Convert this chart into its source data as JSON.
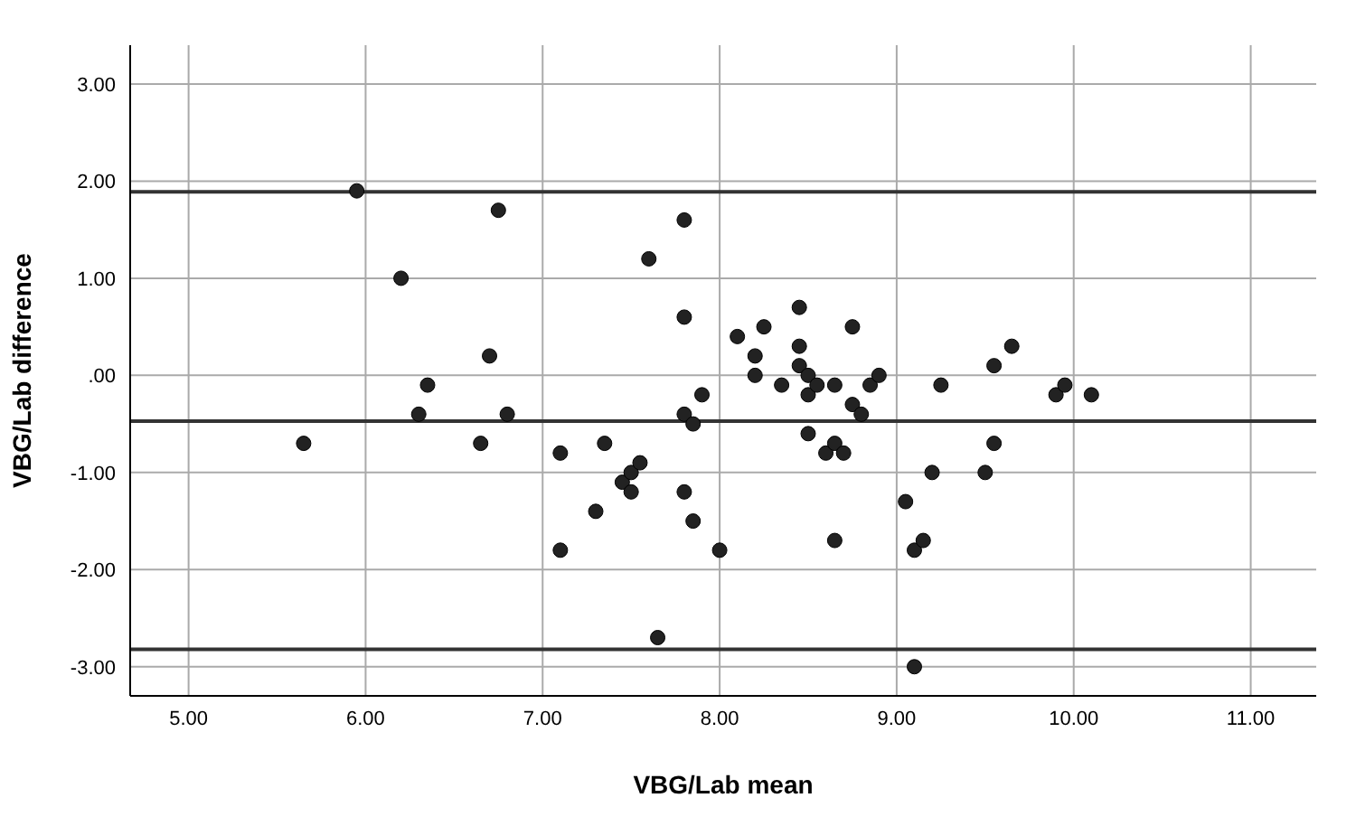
{
  "chart_data": {
    "type": "scatter",
    "xlabel": "VBG/Lab    mean",
    "ylabel": "VBG/Lab difference",
    "x": [
      5.65,
      5.95,
      6.2,
      6.3,
      6.35,
      6.65,
      6.7,
      6.75,
      6.8,
      7.1,
      7.1,
      7.3,
      7.35,
      7.45,
      7.5,
      7.5,
      7.55,
      7.6,
      7.65,
      7.8,
      7.8,
      7.8,
      7.8,
      7.85,
      7.85,
      7.9,
      8.0,
      8.1,
      8.2,
      8.2,
      8.25,
      8.35,
      8.45,
      8.45,
      8.45,
      8.5,
      8.5,
      8.5,
      8.55,
      8.6,
      8.65,
      8.65,
      8.65,
      8.7,
      8.75,
      8.75,
      8.8,
      8.85,
      8.9,
      9.05,
      9.1,
      9.1,
      9.15,
      9.2,
      9.25,
      9.5,
      9.55,
      9.55,
      9.65,
      9.9,
      9.95,
      10.1
    ],
    "values": [
      -0.7,
      1.9,
      1.0,
      -0.4,
      -0.1,
      -0.7,
      0.2,
      1.7,
      -0.4,
      -0.8,
      -1.8,
      -1.4,
      -0.7,
      -1.1,
      -1.0,
      -1.2,
      -0.9,
      1.2,
      -2.7,
      1.6,
      0.6,
      -0.4,
      -1.2,
      -0.5,
      -1.5,
      -0.2,
      -1.8,
      0.4,
      0.2,
      0.0,
      0.5,
      -0.1,
      0.7,
      0.3,
      0.1,
      0.0,
      -0.2,
      -0.6,
      -0.1,
      -0.8,
      -0.1,
      -0.7,
      -1.7,
      -0.8,
      0.5,
      -0.3,
      -0.4,
      -0.1,
      0.0,
      -1.3,
      -1.8,
      -3.0,
      -1.7,
      -1.0,
      -0.1,
      -1.0,
      0.1,
      -0.7,
      0.3,
      -0.2,
      -0.1,
      -0.2
    ],
    "color": "#222222",
    "marker": "circle",
    "grid": true,
    "legend": false,
    "xlim": [
      4.67,
      11.37
    ],
    "xticks": [
      {
        "value": 5,
        "label": "5.00"
      },
      {
        "value": 6,
        "label": "6.00"
      },
      {
        "value": 7,
        "label": "7.00"
      },
      {
        "value": 8,
        "label": "8.00"
      },
      {
        "value": 9,
        "label": "9.00"
      },
      {
        "value": 10,
        "label": "10.00"
      },
      {
        "value": 11,
        "label": "11.00"
      }
    ],
    "ylim": [
      -3.3,
      3.4
    ],
    "yticks": [
      {
        "value": -3,
        "label": "-3.00"
      },
      {
        "value": -2,
        "label": "-2.00"
      },
      {
        "value": -1,
        "label": "-1.00"
      },
      {
        "value": 0,
        "label": ".00"
      },
      {
        "value": 1,
        "label": "1.00"
      },
      {
        "value": 2,
        "label": "2.00"
      },
      {
        "value": 3,
        "label": "3.00"
      }
    ],
    "ref_lines": [
      {
        "axis": "y",
        "value": 1.89,
        "color": "#333333"
      },
      {
        "axis": "y",
        "value": -0.47,
        "color": "#333333"
      },
      {
        "axis": "y",
        "value": -2.82,
        "color": "#333333"
      }
    ]
  }
}
